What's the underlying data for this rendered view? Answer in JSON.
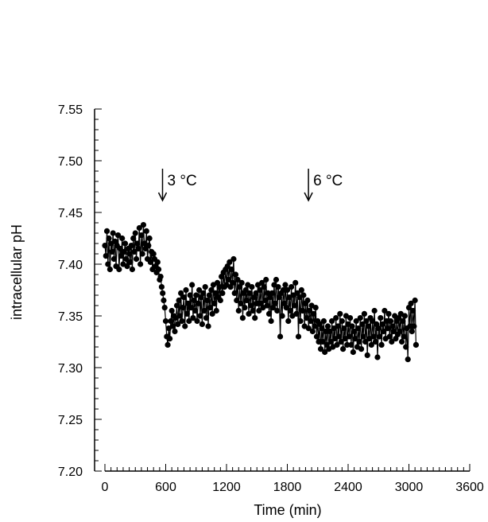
{
  "chart_data": {
    "type": "scatter",
    "xlabel": "Time (min)",
    "ylabel": "intracellular pH",
    "xlim": [
      0,
      3600
    ],
    "ylim": [
      7.2,
      7.55
    ],
    "x_ticks": [
      "0",
      "600",
      "1200",
      "1800",
      "2400",
      "3000",
      "3600"
    ],
    "y_ticks": [
      "7.20",
      "7.25",
      "7.30",
      "7.35",
      "7.40",
      "7.45",
      "7.50",
      "7.55"
    ],
    "grid": false,
    "annotations": [
      {
        "text": "3 °C",
        "x": 600
      },
      {
        "text": "6 °C",
        "x": 2040
      }
    ],
    "series": [
      {
        "marker_color": "#000000",
        "connected": true,
        "points": [
          [
            0,
            7.418
          ],
          [
            10,
            7.408
          ],
          [
            20,
            7.432
          ],
          [
            30,
            7.4
          ],
          [
            40,
            7.425
          ],
          [
            50,
            7.395
          ],
          [
            60,
            7.42
          ],
          [
            70,
            7.412
          ],
          [
            80,
            7.43
          ],
          [
            90,
            7.405
          ],
          [
            100,
            7.422
          ],
          [
            110,
            7.398
          ],
          [
            120,
            7.418
          ],
          [
            130,
            7.428
          ],
          [
            140,
            7.395
          ],
          [
            150,
            7.415
          ],
          [
            160,
            7.408
          ],
          [
            170,
            7.425
          ],
          [
            180,
            7.4
          ],
          [
            190,
            7.412
          ],
          [
            200,
            7.42
          ],
          [
            210,
            7.405
          ],
          [
            220,
            7.398
          ],
          [
            230,
            7.415
          ],
          [
            240,
            7.41
          ],
          [
            250,
            7.402
          ],
          [
            260,
            7.418
          ],
          [
            270,
            7.395
          ],
          [
            280,
            7.425
          ],
          [
            290,
            7.412
          ],
          [
            300,
            7.43
          ],
          [
            310,
            7.405
          ],
          [
            320,
            7.42
          ],
          [
            330,
            7.415
          ],
          [
            340,
            7.435
          ],
          [
            350,
            7.4
          ],
          [
            360,
            7.428
          ],
          [
            370,
            7.41
          ],
          [
            380,
            7.438
          ],
          [
            390,
            7.42
          ],
          [
            400,
            7.415
          ],
          [
            410,
            7.432
          ],
          [
            420,
            7.405
          ],
          [
            430,
            7.418
          ],
          [
            440,
            7.425
          ],
          [
            450,
            7.402
          ],
          [
            460,
            7.412
          ],
          [
            470,
            7.395
          ],
          [
            480,
            7.41
          ],
          [
            490,
            7.405
          ],
          [
            500,
            7.398
          ],
          [
            510,
            7.392
          ],
          [
            520,
            7.402
          ],
          [
            530,
            7.395
          ],
          [
            540,
            7.385
          ],
          [
            550,
            7.388
          ],
          [
            560,
            7.378
          ],
          [
            570,
            7.372
          ],
          [
            580,
            7.365
          ],
          [
            590,
            7.358
          ],
          [
            600,
            7.345
          ],
          [
            610,
            7.33
          ],
          [
            620,
            7.322
          ],
          [
            630,
            7.338
          ],
          [
            640,
            7.328
          ],
          [
            650,
            7.345
          ],
          [
            660,
            7.355
          ],
          [
            670,
            7.34
          ],
          [
            680,
            7.35
          ],
          [
            690,
            7.335
          ],
          [
            700,
            7.348
          ],
          [
            710,
            7.36
          ],
          [
            720,
            7.342
          ],
          [
            730,
            7.365
          ],
          [
            740,
            7.35
          ],
          [
            750,
            7.372
          ],
          [
            760,
            7.345
          ],
          [
            770,
            7.358
          ],
          [
            780,
            7.368
          ],
          [
            790,
            7.34
          ],
          [
            800,
            7.375
          ],
          [
            810,
            7.352
          ],
          [
            820,
            7.362
          ],
          [
            830,
            7.345
          ],
          [
            840,
            7.37
          ],
          [
            850,
            7.358
          ],
          [
            860,
            7.38
          ],
          [
            870,
            7.348
          ],
          [
            880,
            7.365
          ],
          [
            890,
            7.355
          ],
          [
            900,
            7.37
          ],
          [
            910,
            7.345
          ],
          [
            920,
            7.362
          ],
          [
            930,
            7.375
          ],
          [
            940,
            7.35
          ],
          [
            950,
            7.368
          ],
          [
            960,
            7.342
          ],
          [
            970,
            7.372
          ],
          [
            980,
            7.355
          ],
          [
            990,
            7.378
          ],
          [
            1000,
            7.348
          ],
          [
            1010,
            7.365
          ],
          [
            1020,
            7.34
          ],
          [
            1030,
            7.37
          ],
          [
            1040,
            7.358
          ],
          [
            1050,
            7.375
          ],
          [
            1060,
            7.352
          ],
          [
            1070,
            7.38
          ],
          [
            1080,
            7.362
          ],
          [
            1090,
            7.372
          ],
          [
            1100,
            7.355
          ],
          [
            1110,
            7.382
          ],
          [
            1120,
            7.368
          ],
          [
            1130,
            7.378
          ],
          [
            1140,
            7.365
          ],
          [
            1150,
            7.388
          ],
          [
            1160,
            7.372
          ],
          [
            1170,
            7.392
          ],
          [
            1180,
            7.378
          ],
          [
            1190,
            7.395
          ],
          [
            1200,
            7.38
          ],
          [
            1210,
            7.398
          ],
          [
            1220,
            7.385
          ],
          [
            1230,
            7.402
          ],
          [
            1240,
            7.378
          ],
          [
            1250,
            7.395
          ],
          [
            1260,
            7.382
          ],
          [
            1270,
            7.405
          ],
          [
            1280,
            7.372
          ],
          [
            1290,
            7.39
          ],
          [
            1300,
            7.365
          ],
          [
            1310,
            7.385
          ],
          [
            1320,
            7.355
          ],
          [
            1330,
            7.378
          ],
          [
            1340,
            7.362
          ],
          [
            1350,
            7.382
          ],
          [
            1360,
            7.348
          ],
          [
            1370,
            7.372
          ],
          [
            1380,
            7.358
          ],
          [
            1390,
            7.375
          ],
          [
            1400,
            7.365
          ],
          [
            1410,
            7.38
          ],
          [
            1420,
            7.352
          ],
          [
            1430,
            7.372
          ],
          [
            1440,
            7.36
          ],
          [
            1450,
            7.378
          ],
          [
            1460,
            7.355
          ],
          [
            1470,
            7.368
          ],
          [
            1480,
            7.348
          ],
          [
            1490,
            7.372
          ],
          [
            1500,
            7.362
          ],
          [
            1510,
            7.38
          ],
          [
            1520,
            7.355
          ],
          [
            1530,
            7.375
          ],
          [
            1540,
            7.362
          ],
          [
            1550,
            7.382
          ],
          [
            1560,
            7.358
          ],
          [
            1570,
            7.378
          ],
          [
            1580,
            7.365
          ],
          [
            1590,
            7.385
          ],
          [
            1600,
            7.36
          ],
          [
            1610,
            7.372
          ],
          [
            1620,
            7.352
          ],
          [
            1630,
            7.368
          ],
          [
            1640,
            7.345
          ],
          [
            1650,
            7.372
          ],
          [
            1660,
            7.358
          ],
          [
            1670,
            7.38
          ],
          [
            1680,
            7.362
          ],
          [
            1690,
            7.385
          ],
          [
            1700,
            7.355
          ],
          [
            1710,
            7.378
          ],
          [
            1720,
            7.368
          ],
          [
            1730,
            7.33
          ],
          [
            1740,
            7.372
          ],
          [
            1750,
            7.35
          ],
          [
            1760,
            7.375
          ],
          [
            1770,
            7.362
          ],
          [
            1780,
            7.38
          ],
          [
            1790,
            7.358
          ],
          [
            1800,
            7.375
          ],
          [
            1810,
            7.345
          ],
          [
            1820,
            7.368
          ],
          [
            1830,
            7.355
          ],
          [
            1840,
            7.378
          ],
          [
            1850,
            7.35
          ],
          [
            1860,
            7.37
          ],
          [
            1870,
            7.36
          ],
          [
            1880,
            7.382
          ],
          [
            1890,
            7.352
          ],
          [
            1900,
            7.372
          ],
          [
            1910,
            7.33
          ],
          [
            1920,
            7.368
          ],
          [
            1930,
            7.345
          ],
          [
            1940,
            7.375
          ],
          [
            1950,
            7.355
          ],
          [
            1960,
            7.37
          ],
          [
            1970,
            7.34
          ],
          [
            1980,
            7.362
          ],
          [
            1990,
            7.348
          ],
          [
            2000,
            7.365
          ],
          [
            2010,
            7.338
          ],
          [
            2020,
            7.355
          ],
          [
            2030,
            7.345
          ],
          [
            2040,
            7.36
          ],
          [
            2050,
            7.335
          ],
          [
            2060,
            7.352
          ],
          [
            2070,
            7.34
          ],
          [
            2080,
            7.358
          ],
          [
            2090,
            7.33
          ],
          [
            2100,
            7.345
          ],
          [
            2110,
            7.325
          ],
          [
            2120,
            7.342
          ],
          [
            2130,
            7.318
          ],
          [
            2140,
            7.338
          ],
          [
            2150,
            7.325
          ],
          [
            2160,
            7.345
          ],
          [
            2170,
            7.315
          ],
          [
            2180,
            7.335
          ],
          [
            2190,
            7.322
          ],
          [
            2200,
            7.34
          ],
          [
            2210,
            7.318
          ],
          [
            2220,
            7.335
          ],
          [
            2230,
            7.325
          ],
          [
            2240,
            7.345
          ],
          [
            2250,
            7.32
          ],
          [
            2260,
            7.338
          ],
          [
            2270,
            7.328
          ],
          [
            2280,
            7.348
          ],
          [
            2290,
            7.322
          ],
          [
            2300,
            7.34
          ],
          [
            2310,
            7.33
          ],
          [
            2320,
            7.352
          ],
          [
            2330,
            7.325
          ],
          [
            2340,
            7.345
          ],
          [
            2350,
            7.318
          ],
          [
            2360,
            7.338
          ],
          [
            2370,
            7.328
          ],
          [
            2380,
            7.35
          ],
          [
            2390,
            7.322
          ],
          [
            2400,
            7.342
          ],
          [
            2410,
            7.33
          ],
          [
            2420,
            7.348
          ],
          [
            2430,
            7.322
          ],
          [
            2440,
            7.34
          ],
          [
            2450,
            7.315
          ],
          [
            2460,
            7.335
          ],
          [
            2470,
            7.328
          ],
          [
            2480,
            7.345
          ],
          [
            2490,
            7.32
          ],
          [
            2500,
            7.338
          ],
          [
            2510,
            7.325
          ],
          [
            2520,
            7.348
          ],
          [
            2530,
            7.318
          ],
          [
            2540,
            7.342
          ],
          [
            2550,
            7.33
          ],
          [
            2560,
            7.352
          ],
          [
            2570,
            7.325
          ],
          [
            2580,
            7.345
          ],
          [
            2590,
            7.312
          ],
          [
            2600,
            7.34
          ],
          [
            2610,
            7.328
          ],
          [
            2620,
            7.348
          ],
          [
            2630,
            7.322
          ],
          [
            2640,
            7.345
          ],
          [
            2650,
            7.33
          ],
          [
            2660,
            7.355
          ],
          [
            2670,
            7.325
          ],
          [
            2680,
            7.342
          ],
          [
            2690,
            7.31
          ],
          [
            2700,
            7.338
          ],
          [
            2710,
            7.33
          ],
          [
            2720,
            7.348
          ],
          [
            2730,
            7.322
          ],
          [
            2740,
            7.342
          ],
          [
            2750,
            7.335
          ],
          [
            2760,
            7.355
          ],
          [
            2770,
            7.328
          ],
          [
            2780,
            7.345
          ],
          [
            2790,
            7.338
          ],
          [
            2800,
            7.352
          ],
          [
            2810,
            7.33
          ],
          [
            2820,
            7.345
          ],
          [
            2830,
            7.325
          ],
          [
            2840,
            7.34
          ],
          [
            2850,
            7.335
          ],
          [
            2860,
            7.35
          ],
          [
            2870,
            7.328
          ],
          [
            2880,
            7.345
          ],
          [
            2890,
            7.332
          ],
          [
            2900,
            7.348
          ],
          [
            2910,
            7.335
          ],
          [
            2920,
            7.352
          ],
          [
            2930,
            7.325
          ],
          [
            2940,
            7.345
          ],
          [
            2950,
            7.33
          ],
          [
            2960,
            7.35
          ],
          [
            2970,
            7.32
          ],
          [
            2980,
            7.338
          ],
          [
            2990,
            7.308
          ],
          [
            3000,
            7.358
          ],
          [
            3010,
            7.34
          ],
          [
            3020,
            7.362
          ],
          [
            3030,
            7.335
          ],
          [
            3040,
            7.355
          ],
          [
            3050,
            7.34
          ],
          [
            3060,
            7.365
          ],
          [
            3070,
            7.322
          ]
        ]
      }
    ]
  }
}
